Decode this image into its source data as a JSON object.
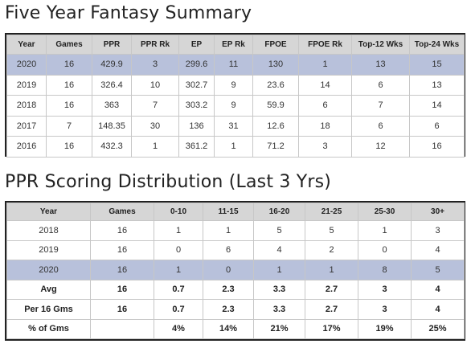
{
  "summary": {
    "title": "Five Year Fantasy Summary",
    "headers": [
      "Year",
      "Games",
      "PPR",
      "PPR Rk",
      "EP",
      "EP Rk",
      "FPOE",
      "FPOE Rk",
      "Top-12 Wks",
      "Top-24 Wks"
    ],
    "rows": [
      {
        "cells": [
          "2020",
          "16",
          "429.9",
          "3",
          "299.6",
          "11",
          "130",
          "1",
          "13",
          "15"
        ],
        "highlight": true
      },
      {
        "cells": [
          "2019",
          "16",
          "326.4",
          "10",
          "302.7",
          "9",
          "23.6",
          "14",
          "6",
          "13"
        ],
        "highlight": false
      },
      {
        "cells": [
          "2018",
          "16",
          "363",
          "7",
          "303.2",
          "9",
          "59.9",
          "6",
          "7",
          "14"
        ],
        "highlight": false
      },
      {
        "cells": [
          "2017",
          "7",
          "148.35",
          "30",
          "136",
          "31",
          "12.6",
          "18",
          "6",
          "6"
        ],
        "highlight": false
      },
      {
        "cells": [
          "2016",
          "16",
          "432.3",
          "1",
          "361.2",
          "1",
          "71.2",
          "3",
          "12",
          "16"
        ],
        "highlight": false
      }
    ]
  },
  "distribution": {
    "title": "PPR Scoring Distribution (Last 3 Yrs)",
    "headers": [
      "Year",
      "Games",
      "0-10",
      "11-15",
      "16-20",
      "21-25",
      "25-30",
      "30+"
    ],
    "rows": [
      {
        "cells": [
          "2018",
          "16",
          "1",
          "1",
          "5",
          "5",
          "1",
          "3"
        ],
        "highlight": false,
        "bold": false
      },
      {
        "cells": [
          "2019",
          "16",
          "0",
          "6",
          "4",
          "2",
          "0",
          "4"
        ],
        "highlight": false,
        "bold": false
      },
      {
        "cells": [
          "2020",
          "16",
          "1",
          "0",
          "1",
          "1",
          "8",
          "5"
        ],
        "highlight": true,
        "bold": false
      },
      {
        "cells": [
          "Avg",
          "16",
          "0.7",
          "2.3",
          "3.3",
          "2.7",
          "3",
          "4"
        ],
        "highlight": false,
        "bold": true
      },
      {
        "cells": [
          "Per 16 Gms",
          "16",
          "0.7",
          "2.3",
          "3.3",
          "2.7",
          "3",
          "4"
        ],
        "highlight": false,
        "bold": true
      },
      {
        "cells": [
          "% of Gms",
          "",
          "4%",
          "14%",
          "21%",
          "17%",
          "19%",
          "25%"
        ],
        "highlight": false,
        "bold": true
      }
    ]
  },
  "colors": {
    "header_bg": "#d6d6d6",
    "highlight_row": "#b8c1db",
    "table_border": "#222222"
  }
}
